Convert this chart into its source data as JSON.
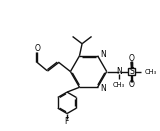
{
  "bg_color": "#ffffff",
  "bond_color": "#111111",
  "lw": 1.0,
  "figsize": [
    1.6,
    1.31
  ],
  "dpi": 100,
  "xlim": [
    0,
    9
  ],
  "ylim": [
    0,
    7.5
  ]
}
